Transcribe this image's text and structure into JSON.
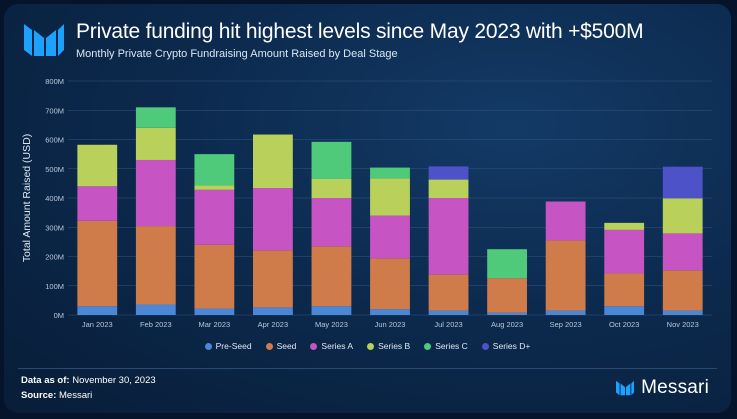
{
  "header": {
    "title": "Private funding hit highest levels since May 2023 with +$500M",
    "subtitle": "Monthly Private Crypto Fundraising Amount Raised by Deal Stage"
  },
  "colors": {
    "background": "#0c2a4e",
    "accent": "#1ea0ff"
  },
  "chart_data": {
    "type": "bar",
    "stacked": true,
    "ylabel": "Total Amount Raised (USD)",
    "xlabel": "",
    "ylim": [
      0,
      800
    ],
    "yticks": [
      "0M",
      "100M",
      "200M",
      "300M",
      "400M",
      "500M",
      "600M",
      "700M",
      "800M"
    ],
    "grid": true,
    "legend_position": "bottom",
    "categories": [
      "Jan 2023",
      "Feb 2023",
      "Mar 2023",
      "Apr 2023",
      "May 2023",
      "Jun 2023",
      "Jul 2023",
      "Aug 2023",
      "Sep 2023",
      "Oct 2023",
      "Nov 2023"
    ],
    "series": [
      {
        "name": "Pre-Seed",
        "color": "#4a87d6",
        "values": [
          30,
          36,
          22,
          26,
          30,
          20,
          15,
          8,
          15,
          30,
          15
        ]
      },
      {
        "name": "Seed",
        "color": "#d07b4a",
        "values": [
          292,
          268,
          218,
          195,
          205,
          174,
          123,
          118,
          240,
          112,
          138
        ]
      },
      {
        "name": "Series A",
        "color": "#c654c2",
        "values": [
          118,
          226,
          188,
          213,
          165,
          146,
          262,
          0,
          133,
          149,
          126
        ]
      },
      {
        "name": "Series B",
        "color": "#b9d05a",
        "values": [
          142,
          110,
          15,
          183,
          65,
          127,
          63,
          0,
          0,
          24,
          120
        ]
      },
      {
        "name": "Series C",
        "color": "#4fc97a",
        "values": [
          0,
          70,
          107,
          0,
          127,
          37,
          0,
          99,
          0,
          0,
          0
        ]
      },
      {
        "name": "Series D+",
        "color": "#4e52c9",
        "values": [
          0,
          0,
          0,
          0,
          0,
          0,
          45,
          0,
          0,
          0,
          108
        ]
      }
    ]
  },
  "footer": {
    "data_as_of_label": "Data as of:",
    "data_as_of_value": " November 30, 2023",
    "source_label": "Source:",
    "source_value": " Messari",
    "brand_name": "Messari"
  }
}
